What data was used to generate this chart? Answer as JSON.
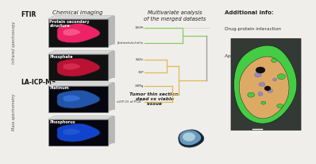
{
  "background_color": "#f0eeea",
  "title_ftir": "FTIR",
  "title_laicp": "LA-ICP-MS",
  "label_infrared": "Infrared spectroscopy",
  "label_mass": "Mass spectrometry",
  "label_chem_img": "Chemical imaging",
  "label_multivar": "Multivariate analysis\nof the merged datasets",
  "label_additional": "Additional info:",
  "label_protein": "Protein secondary\nstructure",
  "label_phosphate": "Phosphate",
  "label_platinum": "Platinum",
  "label_phosphorus": "Phosphorus",
  "label_drug": "Drug-protein interaction",
  "label_apoptosis": "Apoptosis stage",
  "label_tumor": "Tumor thin section:\ndead vs viable\ntissue",
  "dendrogram_labels": [
    "195Pt",
    "β-sheets/α-helix",
    "64Zn",
    "31P",
    "24Mg",
    "ν2(P-O) of PO4³⁻"
  ],
  "dendro_green_color": "#88cc66",
  "dendro_orange_color": "#ddbb55",
  "dendro_gray_color": "#999999",
  "panel_bg_dark": "#111111",
  "panel_pink_bright": "#ee2266",
  "panel_pink_dark": "#bb1133",
  "panel_blue_bright": "#2255aa",
  "panel_blue_dark": "#1144cc",
  "seg_bg": "#2d3d3a",
  "seg_green": "#44cc44",
  "seg_orange": "#ddaa66",
  "seg_purple": "#9988bb",
  "seg_dark": "#111111"
}
